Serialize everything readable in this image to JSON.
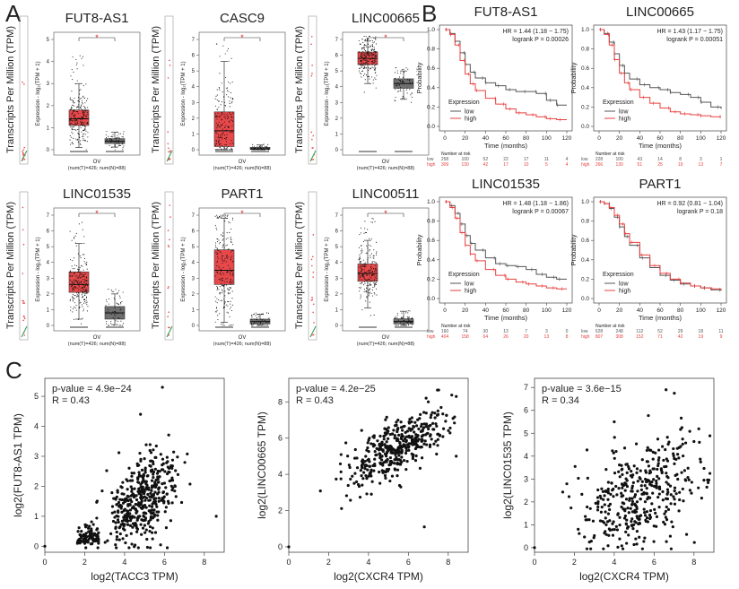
{
  "figure": {
    "panel_labels": [
      "A",
      "B",
      "C"
    ],
    "colors": {
      "tumor": "#e8484a",
      "normal": "#6e6e6e",
      "km_low": "#555555",
      "km_high": "#e84040",
      "points": "#111111"
    }
  },
  "chart_data": [
    {
      "panel": "A",
      "type": "box",
      "title": "FUT8-AS1",
      "ylabel": "Transcripts Per Million (TPM)",
      "inner_ylabel": "Expression - log₂(TPM + 1)",
      "xlabel": "OV",
      "xnote": "(num(T)=426; num(N)=88)",
      "ylim": [
        0,
        5
      ],
      "yticks": [
        0,
        1,
        2,
        3,
        4,
        5
      ],
      "significance": "*",
      "groups": [
        {
          "name": "T",
          "q1": 1.1,
          "median": 1.4,
          "q3": 1.8,
          "wlo": 0.1,
          "whi": 3.0,
          "max": 4.6,
          "n": 426
        },
        {
          "name": "N",
          "q1": 0.28,
          "median": 0.38,
          "q3": 0.5,
          "wlo": 0.12,
          "whi": 0.8,
          "max": 0.9,
          "n": 88
        }
      ]
    },
    {
      "panel": "A",
      "type": "box",
      "title": "CASC9",
      "ylabel": "Transcripts Per Million (TPM)",
      "inner_ylabel": "Expression - log₂(TPM + 1)",
      "xlabel": "OV",
      "xnote": "(num(T)=426; num(N)=88)",
      "ylim": [
        0,
        7
      ],
      "yticks": [
        0,
        1,
        2,
        3,
        4,
        5,
        6,
        7
      ],
      "significance": "*",
      "groups": [
        {
          "name": "T",
          "q1": 0.2,
          "median": 1.2,
          "q3": 2.4,
          "wlo": 0.0,
          "whi": 5.6,
          "max": 6.8,
          "n": 426
        },
        {
          "name": "N",
          "q1": 0.02,
          "median": 0.06,
          "q3": 0.15,
          "wlo": 0.0,
          "whi": 0.3,
          "max": 0.4,
          "n": 88
        }
      ]
    },
    {
      "panel": "A",
      "type": "box",
      "title": "LINC00665",
      "ylabel": "Transcripts Per Million (TPM)",
      "inner_ylabel": "Expression - log₂(TPM + 1)",
      "xlabel": "OV",
      "xnote": "(num(T)=426; num(N)=88)",
      "ylim": [
        0,
        7
      ],
      "yticks": [
        0,
        1,
        2,
        3,
        4,
        5,
        6,
        7
      ],
      "significance": "*",
      "groups": [
        {
          "name": "T",
          "q1": 5.4,
          "median": 5.8,
          "q3": 6.2,
          "wlo": 4.2,
          "whi": 6.9,
          "max": 7.2,
          "n": 426
        },
        {
          "name": "N",
          "q1": 3.9,
          "median": 4.2,
          "q3": 4.5,
          "wlo": 3.2,
          "whi": 5.0,
          "max": 5.2,
          "n": 88
        }
      ]
    },
    {
      "panel": "A",
      "type": "box",
      "title": "LINC01535",
      "ylabel": "Transcripts Per Million (TPM)",
      "inner_ylabel": "Expression - log₂(TPM + 1)",
      "xlabel": "OV",
      "xnote": "(num(T)=426; num(N)=88)",
      "ylim": [
        0,
        7
      ],
      "yticks": [
        0,
        1,
        2,
        3,
        4,
        5,
        6,
        7
      ],
      "significance": "*",
      "groups": [
        {
          "name": "T",
          "q1": 2.1,
          "median": 2.6,
          "q3": 3.4,
          "wlo": 0.4,
          "whi": 5.2,
          "max": 6.8,
          "n": 426
        },
        {
          "name": "N",
          "q1": 0.4,
          "median": 0.8,
          "q3": 1.2,
          "wlo": 0.05,
          "whi": 2.0,
          "max": 2.3,
          "n": 88
        }
      ]
    },
    {
      "panel": "A",
      "type": "box",
      "title": "PART1",
      "ylabel": "Transcripts Per Million (TPM)",
      "inner_ylabel": "Expression - log₂(TPM + 1)",
      "xlabel": "OV",
      "xnote": "(num(T)=426; num(N)=88)",
      "ylim": [
        0,
        7
      ],
      "yticks": [
        0,
        1,
        2,
        3,
        4,
        5,
        6,
        7
      ],
      "significance": "*",
      "groups": [
        {
          "name": "T",
          "q1": 2.6,
          "median": 3.5,
          "q3": 4.8,
          "wlo": 0.2,
          "whi": 6.8,
          "max": 7.0,
          "n": 426
        },
        {
          "name": "N",
          "q1": 0.1,
          "median": 0.25,
          "q3": 0.4,
          "wlo": 0.0,
          "whi": 0.7,
          "max": 0.8,
          "n": 88
        }
      ]
    },
    {
      "panel": "A",
      "type": "box",
      "title": "LINC00511",
      "ylabel": "Transcripts Per Million (TPM)",
      "inner_ylabel": "Expression - log₂(TPM + 1)",
      "xlabel": "OV",
      "xnote": "(num(T)=426; num(N)=88)",
      "ylim": [
        0,
        7
      ],
      "yticks": [
        0,
        1,
        2,
        3,
        4,
        5,
        6,
        7
      ],
      "significance": "*",
      "groups": [
        {
          "name": "T",
          "q1": 2.8,
          "median": 3.3,
          "q3": 3.9,
          "wlo": 1.1,
          "whi": 5.4,
          "max": 6.9,
          "n": 426
        },
        {
          "name": "N",
          "q1": 0.1,
          "median": 0.25,
          "q3": 0.42,
          "wlo": 0.0,
          "whi": 0.9,
          "max": 1.0,
          "n": 88
        }
      ]
    },
    {
      "panel": "B",
      "type": "line",
      "title": "FUT8-AS1",
      "hr_text": "HR = 1.44 (1.18 − 1.75)",
      "p_text": "logrank P = 0.00026",
      "xlabel": "Time (months)",
      "ylabel": "Probability",
      "xlim": [
        0,
        120
      ],
      "ylim": [
        0,
        1
      ],
      "xticks": [
        0,
        20,
        40,
        60,
        80,
        100,
        120
      ],
      "yticks": [
        "0.0",
        "0.2",
        "0.4",
        "0.6",
        "0.8",
        "1.0"
      ],
      "legend_title": "Expression",
      "series": [
        {
          "name": "low",
          "x": [
            0,
            5,
            10,
            15,
            20,
            25,
            30,
            40,
            50,
            60,
            70,
            80,
            90,
            100,
            110,
            120
          ],
          "values": [
            1.0,
            0.96,
            0.88,
            0.76,
            0.64,
            0.56,
            0.5,
            0.45,
            0.42,
            0.38,
            0.36,
            0.36,
            0.34,
            0.27,
            0.22,
            0.22
          ]
        },
        {
          "name": "high",
          "x": [
            0,
            5,
            10,
            15,
            20,
            25,
            30,
            40,
            50,
            60,
            70,
            80,
            90,
            100,
            110,
            120
          ],
          "values": [
            1.0,
            0.95,
            0.84,
            0.68,
            0.54,
            0.44,
            0.37,
            0.29,
            0.23,
            0.18,
            0.14,
            0.12,
            0.1,
            0.08,
            0.07,
            0.07
          ]
        }
      ],
      "risk_table": {
        "title": "Number at risk",
        "times": [
          0,
          20,
          40,
          60,
          80,
          100,
          120
        ],
        "rows": [
          {
            "name": "low",
            "values": [
              "258",
              "100",
              "52",
              "22",
              "17",
              "11",
              "4"
            ]
          },
          {
            "name": "high",
            "values": [
              "309",
              "130",
              "42",
              "17",
              "10",
              "5",
              "4"
            ]
          }
        ]
      }
    },
    {
      "panel": "B",
      "type": "line",
      "title": "LINC00665",
      "hr_text": "HR = 1.43 (1.17 − 1.75)",
      "p_text": "logrank P = 0.00051",
      "xlabel": "Time (months)",
      "ylabel": "Probability",
      "xlim": [
        0,
        120
      ],
      "ylim": [
        0,
        1
      ],
      "xticks": [
        0,
        20,
        40,
        60,
        80,
        100,
        120
      ],
      "yticks": [
        "0.0",
        "0.2",
        "0.4",
        "0.6",
        "0.8",
        "1.0"
      ],
      "legend_title": "Expression",
      "series": [
        {
          "name": "low",
          "x": [
            0,
            5,
            10,
            15,
            20,
            25,
            30,
            40,
            50,
            60,
            70,
            80,
            90,
            100,
            110,
            120
          ],
          "values": [
            1.0,
            0.96,
            0.87,
            0.75,
            0.63,
            0.55,
            0.49,
            0.43,
            0.4,
            0.38,
            0.35,
            0.33,
            0.3,
            0.25,
            0.2,
            0.18
          ]
        },
        {
          "name": "high",
          "x": [
            0,
            5,
            10,
            15,
            20,
            25,
            30,
            40,
            50,
            60,
            70,
            80,
            90,
            100,
            110,
            120
          ],
          "values": [
            1.0,
            0.95,
            0.84,
            0.69,
            0.55,
            0.45,
            0.38,
            0.3,
            0.24,
            0.19,
            0.15,
            0.13,
            0.12,
            0.11,
            0.1,
            0.1
          ]
        }
      ],
      "risk_table": {
        "title": "Number at risk",
        "times": [
          0,
          20,
          40,
          60,
          80,
          100,
          120
        ],
        "rows": [
          {
            "name": "low",
            "values": [
              "228",
              "100",
              "43",
              "14",
              "8",
              "3",
              "1"
            ]
          },
          {
            "name": "high",
            "values": [
              "266",
              "130",
              "51",
              "25",
              "19",
              "13",
              "7"
            ]
          }
        ]
      }
    },
    {
      "panel": "B",
      "type": "line",
      "title": "LINC01535",
      "hr_text": "HR = 1.48 (1.18 − 1.86)",
      "p_text": "logrank P = 0.00067",
      "xlabel": "Time (months)",
      "ylabel": "Probability",
      "xlim": [
        0,
        120
      ],
      "ylim": [
        0,
        1
      ],
      "xticks": [
        0,
        20,
        40,
        60,
        80,
        100,
        120
      ],
      "yticks": [
        "0.0",
        "0.2",
        "0.4",
        "0.6",
        "0.8",
        "1.0"
      ],
      "legend_title": "Expression",
      "series": [
        {
          "name": "low",
          "x": [
            0,
            5,
            10,
            15,
            20,
            25,
            30,
            40,
            50,
            60,
            70,
            80,
            90,
            100,
            110,
            120
          ],
          "values": [
            1.0,
            0.96,
            0.88,
            0.77,
            0.65,
            0.57,
            0.5,
            0.42,
            0.36,
            0.34,
            0.33,
            0.3,
            0.25,
            0.22,
            0.2,
            0.2
          ]
        },
        {
          "name": "high",
          "x": [
            0,
            5,
            10,
            15,
            20,
            25,
            30,
            40,
            50,
            60,
            70,
            80,
            90,
            100,
            110,
            120
          ],
          "values": [
            1.0,
            0.94,
            0.83,
            0.68,
            0.55,
            0.46,
            0.39,
            0.3,
            0.24,
            0.2,
            0.17,
            0.15,
            0.13,
            0.11,
            0.1,
            0.1
          ]
        }
      ],
      "risk_table": {
        "title": "Number at risk",
        "times": [
          0,
          20,
          40,
          60,
          80,
          100,
          120
        ],
        "rows": [
          {
            "name": "low",
            "values": [
              "160",
              "74",
              "30",
              "13",
              "7",
              "3",
              "0"
            ]
          },
          {
            "name": "high",
            "values": [
              "404",
              "158",
              "64",
              "26",
              "20",
              "13",
              "8"
            ]
          }
        ]
      }
    },
    {
      "panel": "B",
      "type": "line",
      "title": "PART1",
      "hr_text": "HR = 0.92 (0.81 − 1.04)",
      "p_text": "logrank P = 0.18",
      "xlabel": "Time (months)",
      "ylabel": "Probability",
      "xlim": [
        0,
        120
      ],
      "ylim": [
        0,
        1
      ],
      "xticks": [
        0,
        20,
        40,
        60,
        80,
        100,
        120
      ],
      "yticks": [
        "0.0",
        "0.2",
        "0.4",
        "0.6",
        "0.8",
        "1.0"
      ],
      "legend_title": "Expression",
      "series": [
        {
          "name": "low",
          "x": [
            0,
            5,
            10,
            15,
            20,
            25,
            30,
            40,
            50,
            60,
            70,
            80,
            90,
            100,
            110,
            120
          ],
          "values": [
            1.0,
            0.98,
            0.93,
            0.84,
            0.74,
            0.64,
            0.55,
            0.42,
            0.32,
            0.24,
            0.19,
            0.15,
            0.13,
            0.11,
            0.09,
            0.08
          ]
        },
        {
          "name": "high",
          "x": [
            0,
            5,
            10,
            15,
            20,
            25,
            30,
            40,
            50,
            60,
            70,
            80,
            90,
            100,
            110,
            120
          ],
          "values": [
            1.0,
            0.98,
            0.94,
            0.86,
            0.77,
            0.67,
            0.58,
            0.45,
            0.34,
            0.26,
            0.2,
            0.16,
            0.13,
            0.11,
            0.1,
            0.09
          ]
        }
      ],
      "risk_table": {
        "title": "Number at risk",
        "times": [
          0,
          20,
          40,
          60,
          80,
          100,
          120
        ],
        "rows": [
          {
            "name": "low",
            "values": [
              "628",
              "248",
              "112",
              "52",
              "29",
              "18",
              "11"
            ]
          },
          {
            "name": "high",
            "values": [
              "807",
              "308",
              "152",
              "71",
              "42",
              "19",
              "9"
            ]
          }
        ]
      }
    },
    {
      "panel": "C",
      "type": "scatter",
      "p_text": "p-value = 4.9e−24",
      "r_text": "R = 0.43",
      "xlabel": "log2(TACC3 TPM)",
      "ylabel": "log2(FUT8-AS1 TPM)",
      "xlim": [
        0,
        9
      ],
      "ylim": [
        -0.2,
        5.6
      ],
      "xticks": [
        0,
        2,
        4,
        6,
        8
      ],
      "yticks": [
        0,
        1,
        2,
        3,
        4,
        5
      ],
      "points": {
        "n": 420,
        "cluster": {
          "x": [
            1.6,
            2.7
          ],
          "y": [
            0.05,
            0.7
          ],
          "n": 90
        },
        "cx": 5.0,
        "sx": 0.85,
        "slope": 0.42,
        "y0": 1.6,
        "sy": 0.75,
        "extra": [
          [
            0,
            0
          ],
          [
            8.6,
            1.0
          ],
          [
            5.9,
            5.3
          ],
          [
            4.8,
            4.4
          ]
        ]
      }
    },
    {
      "panel": "C",
      "type": "scatter",
      "p_text": "p-value = 4.2e−25",
      "r_text": "R = 0.43",
      "xlabel": "log2(CXCR4 TPM)",
      "ylabel": "log2(LINC00665 TPM)",
      "xlim": [
        0,
        9
      ],
      "ylim": [
        -0.3,
        9.3
      ],
      "xticks": [
        0,
        2,
        4,
        6,
        8
      ],
      "yticks": [
        0,
        2,
        4,
        6,
        8
      ],
      "points": {
        "n": 420,
        "cluster": null,
        "cx": 5.4,
        "sx": 1.3,
        "slope": 0.55,
        "y0": 5.5,
        "sy": 0.75,
        "extra": [
          [
            0,
            0
          ],
          [
            6.8,
            1.1
          ],
          [
            7.0,
            8.0
          ],
          [
            8.4,
            5.0
          ]
        ]
      }
    },
    {
      "panel": "C",
      "type": "scatter",
      "p_text": "p-value = 3.6e−15",
      "r_text": "R = 0.34",
      "xlabel": "log2(CXCR4 TPM)",
      "ylabel": "log2(LINC01535 TPM)",
      "xlim": [
        0,
        9
      ],
      "ylim": [
        -0.2,
        7.4
      ],
      "xticks": [
        0,
        2,
        4,
        6,
        8
      ],
      "yticks": [
        0,
        1,
        2,
        3,
        4,
        5,
        6,
        7
      ],
      "points": {
        "n": 400,
        "cluster": null,
        "cx": 5.3,
        "sx": 1.5,
        "slope": 0.35,
        "y0": 2.4,
        "sy": 1.1,
        "extra": [
          [
            0,
            0
          ],
          [
            6.6,
            6.9
          ],
          [
            4.0,
            5.5
          ]
        ]
      }
    }
  ]
}
